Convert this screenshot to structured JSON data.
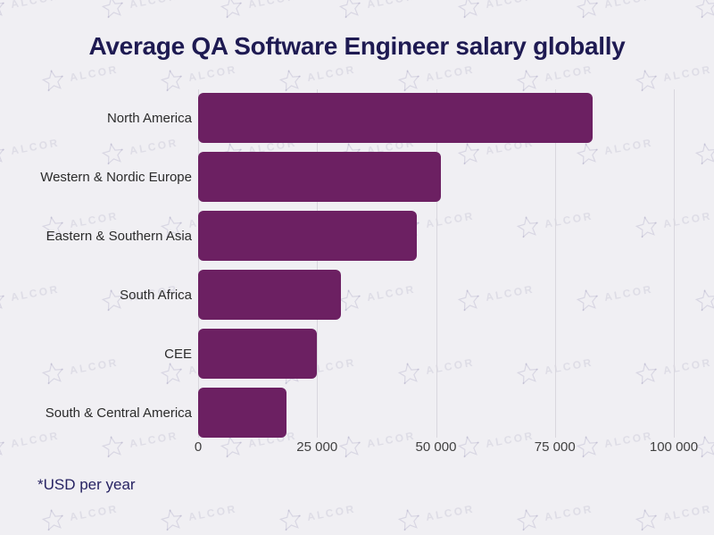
{
  "title": "Average QA Software Engineer salary globally",
  "footnote": "*USD per year",
  "watermark": {
    "text": "ALCOR",
    "icon": "star-constellation"
  },
  "colors": {
    "background": "#f0eff3",
    "bar": "#6c2062",
    "title": "#1e1a52",
    "category_label": "#2b2b2b",
    "tick_label": "#414141",
    "gridline": "#d9d7de",
    "footnote": "#272363",
    "watermark": "rgba(95,88,140,0.12)"
  },
  "chart_data": {
    "type": "bar",
    "orientation": "horizontal",
    "title": "Average QA Software Engineer salary globally",
    "unit_note": "*USD per year",
    "categories": [
      "North America",
      "Western & Nordic Europe",
      "Eastern & Southern Asia",
      "South Africa",
      "CEE",
      "South & Central America"
    ],
    "values": [
      83000,
      51000,
      46000,
      30000,
      25000,
      18500
    ],
    "xlim": [
      0,
      100000
    ],
    "x_ticks": [
      {
        "value": 0,
        "label": "0"
      },
      {
        "value": 25000,
        "label": "25 000"
      },
      {
        "value": 50000,
        "label": "50 000"
      },
      {
        "value": 75000,
        "label": "75 000"
      },
      {
        "value": 100000,
        "label": "100 000"
      }
    ],
    "grid": "vertical",
    "legend": "none",
    "data_labels": "none"
  }
}
